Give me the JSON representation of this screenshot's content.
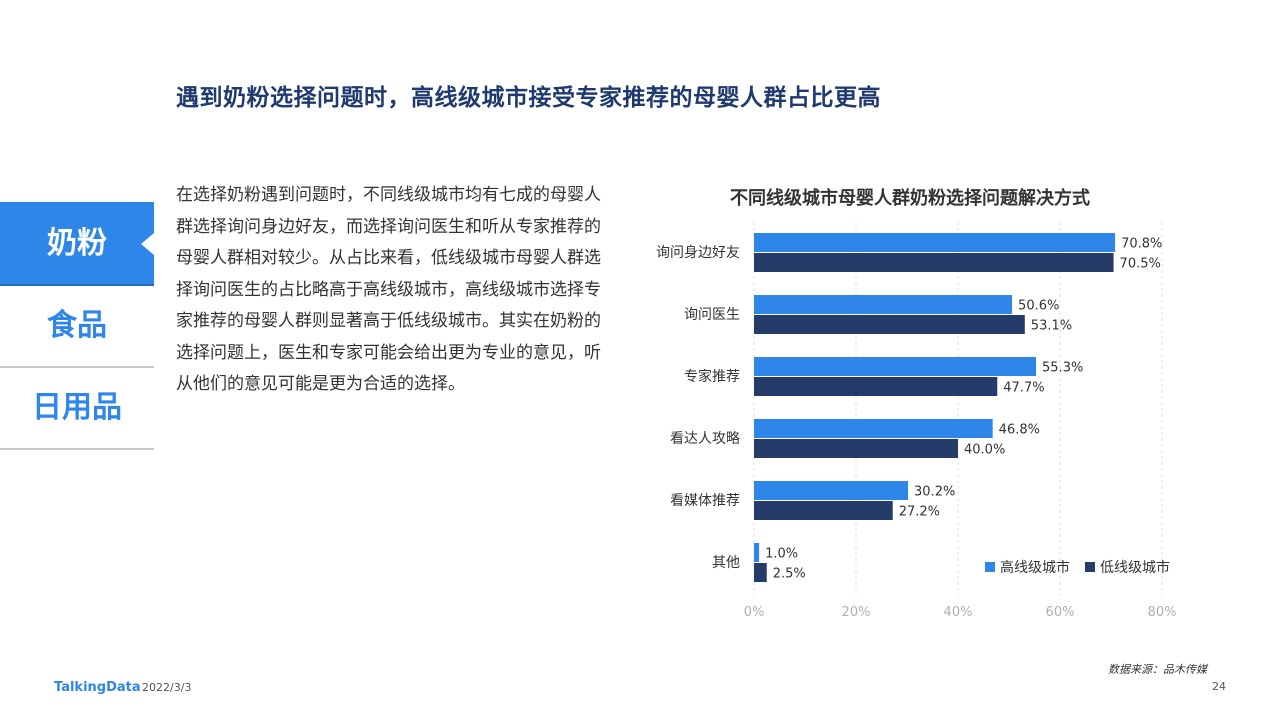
{
  "page": {
    "title": "遇到奶粉选择问题时，高线级城市接受专家推荐的母婴人群占比更高",
    "body": "在选择奶粉遇到问题时，不同线级城市均有七成的母婴人群选择询问身边好友，而选择询问医生和听从专家推荐的母婴人群相对较少。从占比来看，低线级城市母婴人群选择询问医生的占比略高于高线级城市，高线级城市选择专家推荐的母婴人群则显著高于低线级城市。其实在奶粉的选择问题上，医生和专家可能会给出更为专业的意见，听从他们的意见可能是更为合适的选择。",
    "tabs": [
      {
        "label": "奶粉",
        "active": true
      },
      {
        "label": "食品",
        "active": false
      },
      {
        "label": "日用品",
        "active": false
      }
    ],
    "footer": {
      "logo": "TalkingData",
      "date": "2022/3/3",
      "source": "数据来源：品木传媒",
      "page_number": "24"
    }
  },
  "chart_data": {
    "type": "bar",
    "orientation": "horizontal",
    "title": "不同线级城市母婴人群奶粉选择问题解决方式",
    "categories": [
      "询问身边好友",
      "询问医生",
      "专家推荐",
      "看达人攻略",
      "看媒体推荐",
      "其他"
    ],
    "series": [
      {
        "name": "高线级城市",
        "color": "#2e86e8",
        "values": [
          70.8,
          50.6,
          55.3,
          46.8,
          30.2,
          1.0
        ]
      },
      {
        "name": "低线级城市",
        "color": "#253c6b",
        "values": [
          70.5,
          53.1,
          47.7,
          40.0,
          27.2,
          2.5
        ]
      }
    ],
    "xlim": [
      0,
      80
    ],
    "xticks": [
      "0%",
      "20%",
      "40%",
      "60%",
      "80%"
    ],
    "value_labels": [
      [
        "70.8%",
        "50.6%",
        "55.3%",
        "46.8%",
        "30.2%",
        "1.0%"
      ],
      [
        "70.5%",
        "53.1%",
        "47.7%",
        "40.0%",
        "27.2%",
        "2.5%"
      ]
    ],
    "grid": "vertical dashed",
    "legend_position": "bottom-right"
  }
}
